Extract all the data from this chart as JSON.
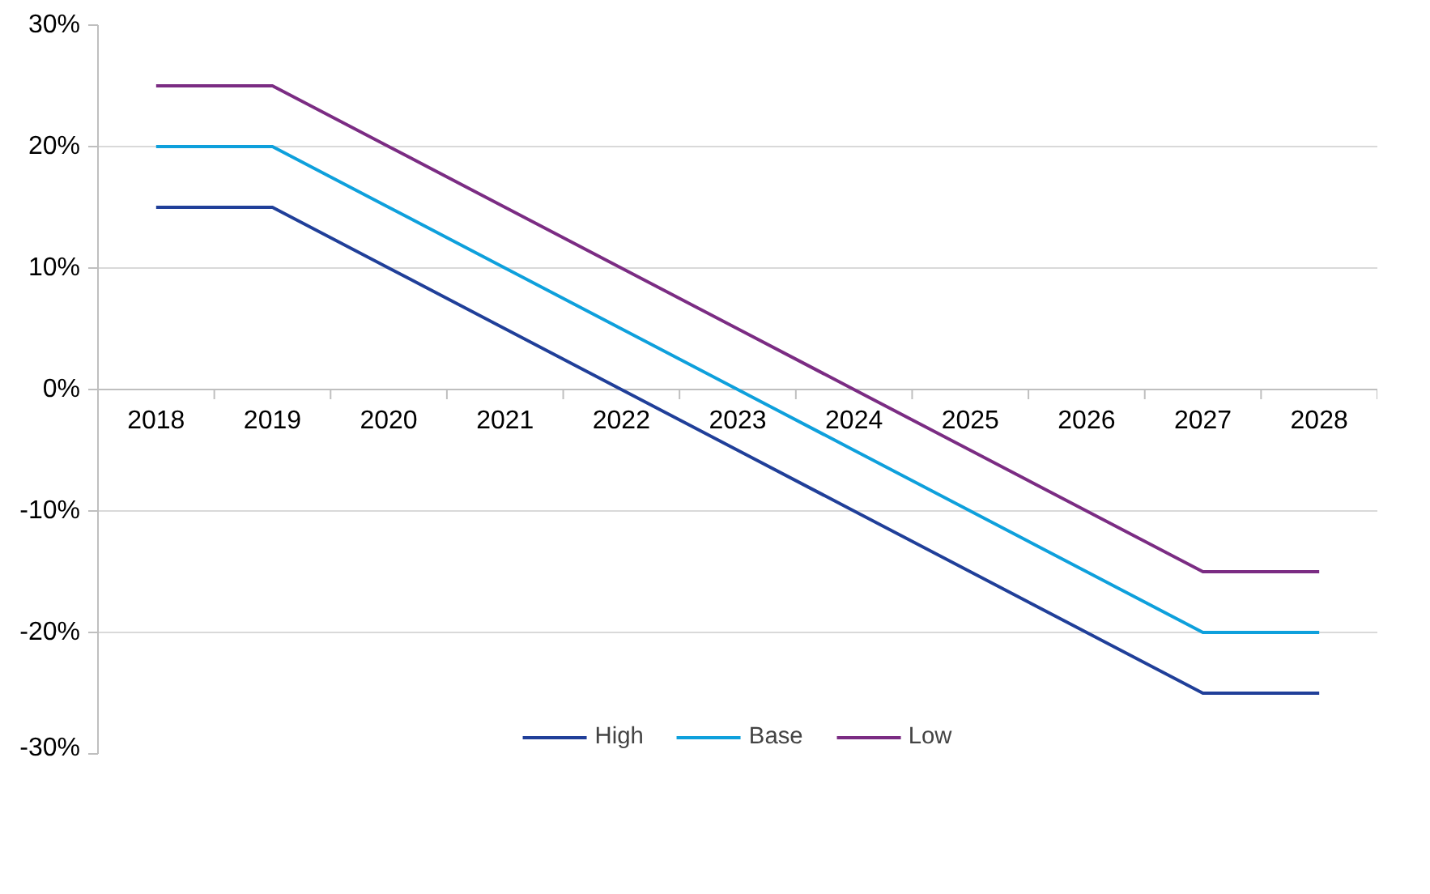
{
  "chart_data": {
    "type": "line",
    "categories": [
      "2018",
      "2019",
      "2020",
      "2021",
      "2022",
      "2023",
      "2024",
      "2025",
      "2026",
      "2027",
      "2028"
    ],
    "series": [
      {
        "name": "High",
        "color": "#203f99",
        "values": [
          15,
          15,
          10,
          5,
          0,
          -5,
          -10,
          -15,
          -20,
          -25,
          -25
        ]
      },
      {
        "name": "Base",
        "color": "#0ea0dc",
        "values": [
          20,
          20,
          15,
          10,
          5,
          0,
          -5,
          -10,
          -15,
          -20,
          -20
        ]
      },
      {
        "name": "Low",
        "color": "#7b2c83",
        "values": [
          25,
          25,
          20,
          15,
          10,
          5,
          0,
          -5,
          -10,
          -15,
          -15
        ]
      }
    ],
    "ylim": [
      -30,
      30
    ],
    "yticks": [
      {
        "value": -30,
        "label": "-30%"
      },
      {
        "value": -20,
        "label": "-20%"
      },
      {
        "value": -10,
        "label": "-10%"
      },
      {
        "value": 0,
        "label": "0%"
      },
      {
        "value": 10,
        "label": "10%"
      },
      {
        "value": 20,
        "label": "20%"
      },
      {
        "value": 30,
        "label": "30%"
      }
    ],
    "grid": "y",
    "legend": "bottom",
    "marker": "none",
    "line_style": "solid"
  }
}
